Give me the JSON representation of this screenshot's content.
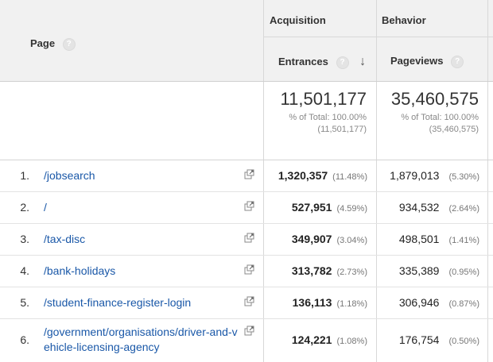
{
  "header": {
    "page_label": "Page",
    "help_glyph": "?",
    "groups": {
      "acquisition": "Acquisition",
      "behavior": "Behavior"
    },
    "columns": {
      "entrances": "Entrances",
      "pageviews": "Pageviews"
    },
    "sort_icon": "arrow-down-icon"
  },
  "totals": {
    "entrances": {
      "value": "11,501,177",
      "pct": "% of Total: 100.00%",
      "abs": "(11,501,177)"
    },
    "pageviews": {
      "value": "35,460,575",
      "pct": "% of Total: 100.00%",
      "abs": "(35,460,575)"
    }
  },
  "rows": [
    {
      "num": "1.",
      "page": "/jobsearch",
      "entrances": "1,320,357",
      "entrances_pct": "(11.48%)",
      "pageviews": "1,879,013",
      "pageviews_pct": "(5.30%)"
    },
    {
      "num": "2.",
      "page": "/",
      "entrances": "527,951",
      "entrances_pct": "(4.59%)",
      "pageviews": "934,532",
      "pageviews_pct": "(2.64%)"
    },
    {
      "num": "3.",
      "page": "/tax-disc",
      "entrances": "349,907",
      "entrances_pct": "(3.04%)",
      "pageviews": "498,501",
      "pageviews_pct": "(1.41%)"
    },
    {
      "num": "4.",
      "page": "/bank-holidays",
      "entrances": "313,782",
      "entrances_pct": "(2.73%)",
      "pageviews": "335,389",
      "pageviews_pct": "(0.95%)"
    },
    {
      "num": "5.",
      "page": "/student-finance-register-login",
      "entrances": "136,113",
      "entrances_pct": "(1.18%)",
      "pageviews": "306,946",
      "pageviews_pct": "(0.87%)"
    },
    {
      "num": "6.",
      "page_line1": "/government/organisations/driver-and-v",
      "page_line2": "ehicle-licensing-agency",
      "entrances": "124,221",
      "entrances_pct": "(1.08%)",
      "pageviews": "176,754",
      "pageviews_pct": "(0.50%)"
    }
  ],
  "icons": {
    "external_link": "external-link-icon"
  },
  "colors": {
    "link": "#1a58a8",
    "header_bg": "#f1f1f1"
  }
}
